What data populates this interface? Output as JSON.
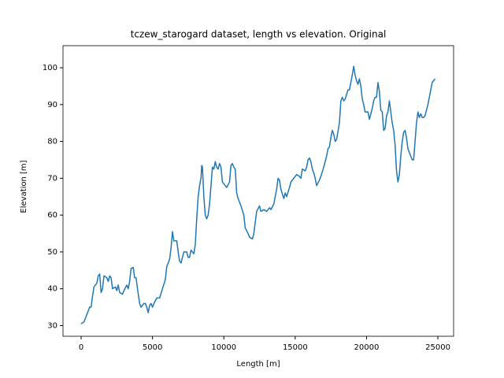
{
  "chart_data": {
    "type": "line",
    "title": "tczew_starogard dataset, length vs elevation. Original",
    "xlabel": "Length [m]",
    "ylabel": "Elevation [m]",
    "x": [
      0,
      200,
      400,
      600,
      700,
      800,
      900,
      1100,
      1200,
      1300,
      1400,
      1500,
      1600,
      1800,
      1900,
      2000,
      2100,
      2200,
      2400,
      2500,
      2600,
      2700,
      2900,
      3000,
      3200,
      3300,
      3400,
      3500,
      3650,
      3750,
      3850,
      3950,
      4100,
      4200,
      4400,
      4500,
      4600,
      4700,
      4800,
      4900,
      5000,
      5100,
      5300,
      5500,
      5700,
      5900,
      6000,
      6100,
      6200,
      6300,
      6400,
      6500,
      6700,
      6800,
      6900,
      7000,
      7200,
      7400,
      7500,
      7600,
      7700,
      7900,
      8000,
      8100,
      8200,
      8300,
      8400,
      8450,
      8500,
      8600,
      8700,
      8800,
      8900,
      9000,
      9100,
      9200,
      9300,
      9400,
      9500,
      9600,
      9700,
      9800,
      9900,
      10100,
      10200,
      10400,
      10500,
      10600,
      10700,
      10800,
      10900,
      11000,
      11200,
      11400,
      11500,
      11700,
      11800,
      12000,
      12100,
      12200,
      12300,
      12500,
      12600,
      12800,
      13000,
      13200,
      13300,
      13500,
      13700,
      13800,
      13900,
      14000,
      14200,
      14300,
      14400,
      14600,
      14700,
      14900,
      15100,
      15300,
      15400,
      15500,
      15700,
      15800,
      15900,
      16000,
      16100,
      16200,
      16300,
      16400,
      16500,
      16700,
      16800,
      17000,
      17200,
      17300,
      17400,
      17500,
      17600,
      17700,
      17800,
      17900,
      18100,
      18200,
      18300,
      18400,
      18500,
      18700,
      18800,
      19000,
      19100,
      19200,
      19300,
      19400,
      19500,
      19600,
      19700,
      19800,
      19900,
      20100,
      20200,
      20400,
      20500,
      20600,
      20700,
      20800,
      20900,
      21000,
      21100,
      21200,
      21300,
      21400,
      21500,
      21600,
      21700,
      21800,
      21900,
      22000,
      22100,
      22200,
      22300,
      22400,
      22500,
      22600,
      22700,
      22800,
      22900,
      23000,
      23200,
      23300,
      23400,
      23500,
      23600,
      23700,
      23800,
      23900,
      24000,
      24100,
      24300,
      24500,
      24600,
      24800
    ],
    "series": [
      {
        "name": "elevation",
        "color": "#1f77b4",
        "values": [
          30.5,
          31,
          33,
          35,
          35,
          38,
          40.5,
          41.5,
          43.5,
          44,
          39,
          40,
          43.5,
          43,
          42,
          43.5,
          43,
          40,
          40.5,
          39.5,
          41,
          39,
          38.5,
          39.5,
          41,
          40,
          42,
          45.5,
          45.8,
          43,
          43,
          40,
          36,
          35,
          36,
          36,
          35,
          33.5,
          35.5,
          36,
          35,
          36,
          37.5,
          37.5,
          40,
          42.5,
          46,
          47,
          48,
          51,
          55.5,
          53,
          53,
          50,
          47.5,
          47,
          50,
          50,
          48.5,
          48.5,
          50.5,
          49.5,
          52,
          59,
          65,
          68,
          70,
          73.5,
          73,
          65,
          60,
          59,
          60,
          63,
          68,
          73,
          72.5,
          74.5,
          73,
          72.5,
          74,
          73,
          69,
          68,
          67.5,
          69,
          73.5,
          74,
          73,
          72.5,
          66,
          64.5,
          62.5,
          60,
          56.5,
          55,
          54,
          53.5,
          55,
          58,
          61,
          62.5,
          61,
          61.5,
          61,
          62,
          61.5,
          63,
          67,
          70,
          69.5,
          67,
          64.5,
          66,
          65,
          67.5,
          69,
          70,
          71,
          70.5,
          70,
          72.5,
          72,
          73,
          75,
          75.5,
          74.5,
          72.5,
          71.5,
          70,
          68,
          69.5,
          70.5,
          73,
          76,
          78,
          78.5,
          81,
          83,
          82,
          80,
          80.5,
          85,
          91,
          92,
          91,
          91.5,
          94,
          94,
          98,
          100.4,
          98,
          96.5,
          95.5,
          97,
          95,
          91.5,
          90,
          88,
          88,
          86,
          89,
          91,
          92,
          92,
          96,
          93.5,
          88.5,
          88,
          83,
          83.5,
          87,
          88,
          91,
          88,
          85,
          83,
          79,
          72,
          69,
          71,
          76,
          80,
          82.5,
          83,
          81,
          78,
          77,
          75,
          75,
          80,
          85,
          88,
          86.5,
          87.5,
          86.5,
          86.5,
          87,
          90,
          94,
          96,
          97
        ]
      }
    ],
    "xlim": [
      -1270,
      26100
    ],
    "ylim": [
      27.1,
      106
    ],
    "xticks": [
      0,
      5000,
      10000,
      15000,
      20000,
      25000
    ],
    "yticks": [
      30,
      40,
      50,
      60,
      70,
      80,
      90,
      100
    ]
  }
}
